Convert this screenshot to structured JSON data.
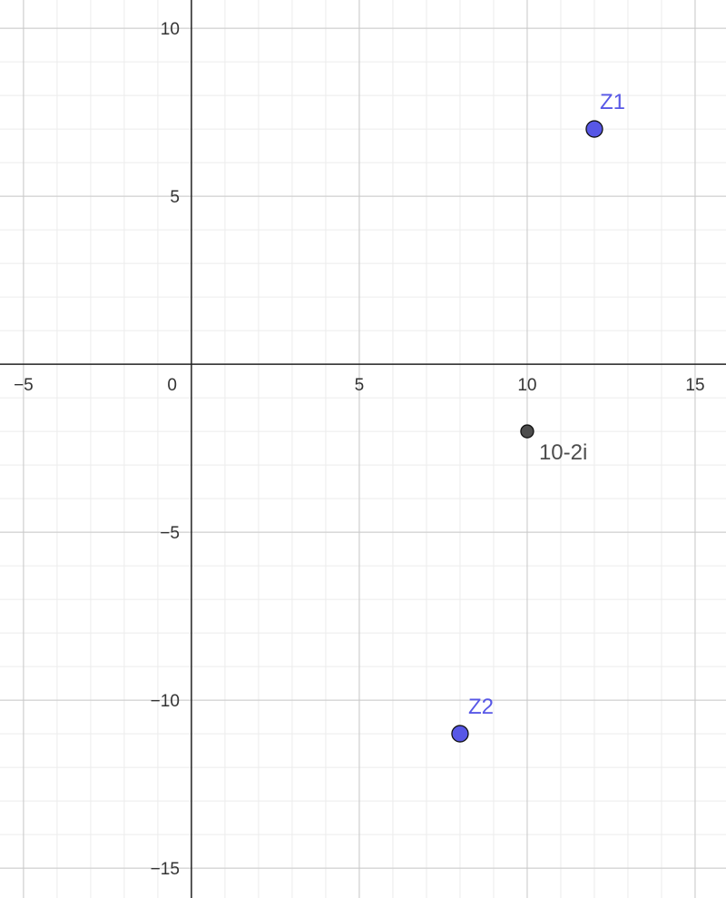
{
  "chart_data": {
    "type": "scatter",
    "xlim": [
      -5.7,
      15.92
    ],
    "ylim": [
      -15.89,
      10.84
    ],
    "xticks": [
      {
        "value": -5,
        "label": "−5"
      },
      0,
      5,
      10,
      15
    ],
    "yticks": [
      {
        "value": -15,
        "label": "−15"
      },
      {
        "value": -10,
        "label": "−10"
      },
      {
        "value": -5,
        "label": "−5"
      },
      5,
      10
    ],
    "grid": true,
    "minor_grid_step": 1,
    "points": [
      {
        "label": "Z1",
        "x": 12,
        "y": 7,
        "color": "#5757e6"
      },
      {
        "label": "Z2",
        "x": 8,
        "y": -11,
        "color": "#5757e6"
      },
      {
        "label": "10-2i",
        "x": 10,
        "y": -2,
        "color": "#4d4d4d"
      }
    ]
  }
}
